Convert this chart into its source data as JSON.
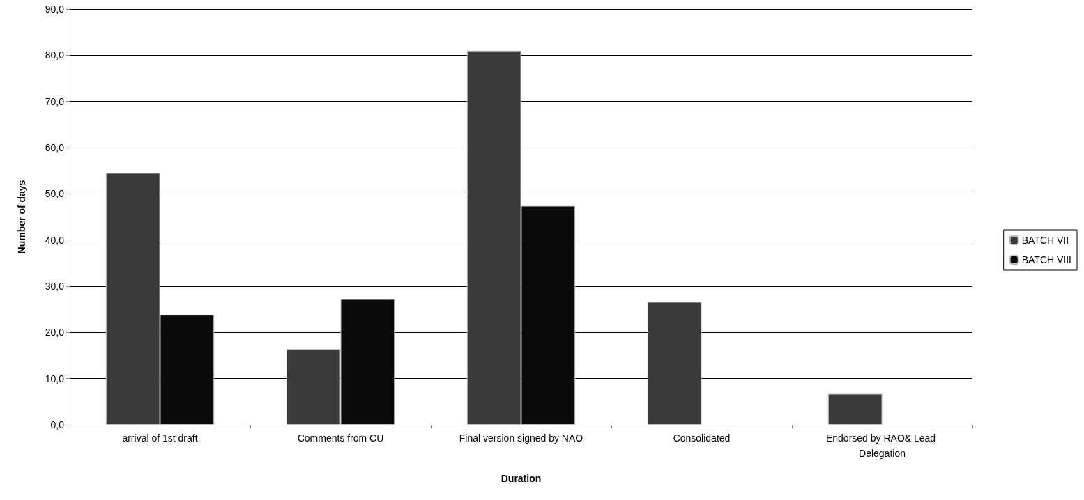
{
  "chart_data": {
    "type": "bar",
    "xlabel": "Duration",
    "ylabel": "Number of days",
    "categories": [
      "arrival of 1st draft",
      "Comments from CU",
      "Final version signed by NAO",
      "Consolidated",
      "Endorsed by RAO& Lead Delegation"
    ],
    "series": [
      {
        "name": "BATCH VII",
        "color": "#3a3a3a",
        "values": [
          54.5,
          16.4,
          81.0,
          26.6,
          6.7
        ]
      },
      {
        "name": "BATCH VIII",
        "color": "#0a0a0a",
        "values": [
          23.8,
          27.2,
          47.4,
          null,
          null
        ]
      }
    ],
    "ylim": [
      0,
      90
    ],
    "yticks": [
      {
        "value": 0,
        "label": "0,0"
      },
      {
        "value": 10,
        "label": "10,0"
      },
      {
        "value": 20,
        "label": "20,0"
      },
      {
        "value": 30,
        "label": "30,0"
      },
      {
        "value": 40,
        "label": "40,0"
      },
      {
        "value": 50,
        "label": "50,0"
      },
      {
        "value": 60,
        "label": "60,0"
      },
      {
        "value": 70,
        "label": "70,0"
      },
      {
        "value": 80,
        "label": "80,0"
      },
      {
        "value": 90,
        "label": "90,0"
      }
    ],
    "grid": "y",
    "legend": "right"
  }
}
